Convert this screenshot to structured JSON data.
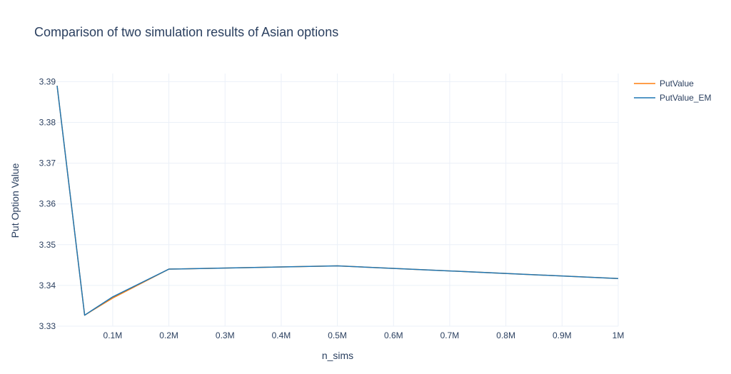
{
  "chart_data": {
    "type": "line",
    "title": "Comparison of two simulation results of Asian options",
    "xlabel": "n_sims",
    "ylabel": "Put Option Value",
    "xlim": [
      1000,
      1000000
    ],
    "ylim": [
      3.33,
      3.392
    ],
    "x_ticks": [
      {
        "value": 100000,
        "label": "0.1M"
      },
      {
        "value": 200000,
        "label": "0.2M"
      },
      {
        "value": 300000,
        "label": "0.3M"
      },
      {
        "value": 400000,
        "label": "0.4M"
      },
      {
        "value": 500000,
        "label": "0.5M"
      },
      {
        "value": 600000,
        "label": "0.6M"
      },
      {
        "value": 700000,
        "label": "0.7M"
      },
      {
        "value": 800000,
        "label": "0.8M"
      },
      {
        "value": 900000,
        "label": "0.9M"
      },
      {
        "value": 1000000,
        "label": "1M"
      }
    ],
    "y_ticks": [
      {
        "value": 3.33,
        "label": "3.33"
      },
      {
        "value": 3.34,
        "label": "3.34"
      },
      {
        "value": 3.35,
        "label": "3.35"
      },
      {
        "value": 3.36,
        "label": "3.36"
      },
      {
        "value": 3.37,
        "label": "3.37"
      },
      {
        "value": 3.38,
        "label": "3.38"
      },
      {
        "value": 3.39,
        "label": "3.39"
      }
    ],
    "grid": true,
    "legend_position": "top-right",
    "x": [
      1000,
      50000,
      100000,
      200000,
      500000,
      1000000
    ],
    "series": [
      {
        "name": "PutValue",
        "color": "#ff7f0e",
        "values": [
          3.389,
          3.3327,
          3.3369,
          3.344,
          3.3448,
          3.3417
        ]
      },
      {
        "name": "PutValue_EM",
        "color": "#1f77b4",
        "values": [
          3.389,
          3.3327,
          3.3372,
          3.344,
          3.3448,
          3.3417
        ]
      }
    ]
  }
}
